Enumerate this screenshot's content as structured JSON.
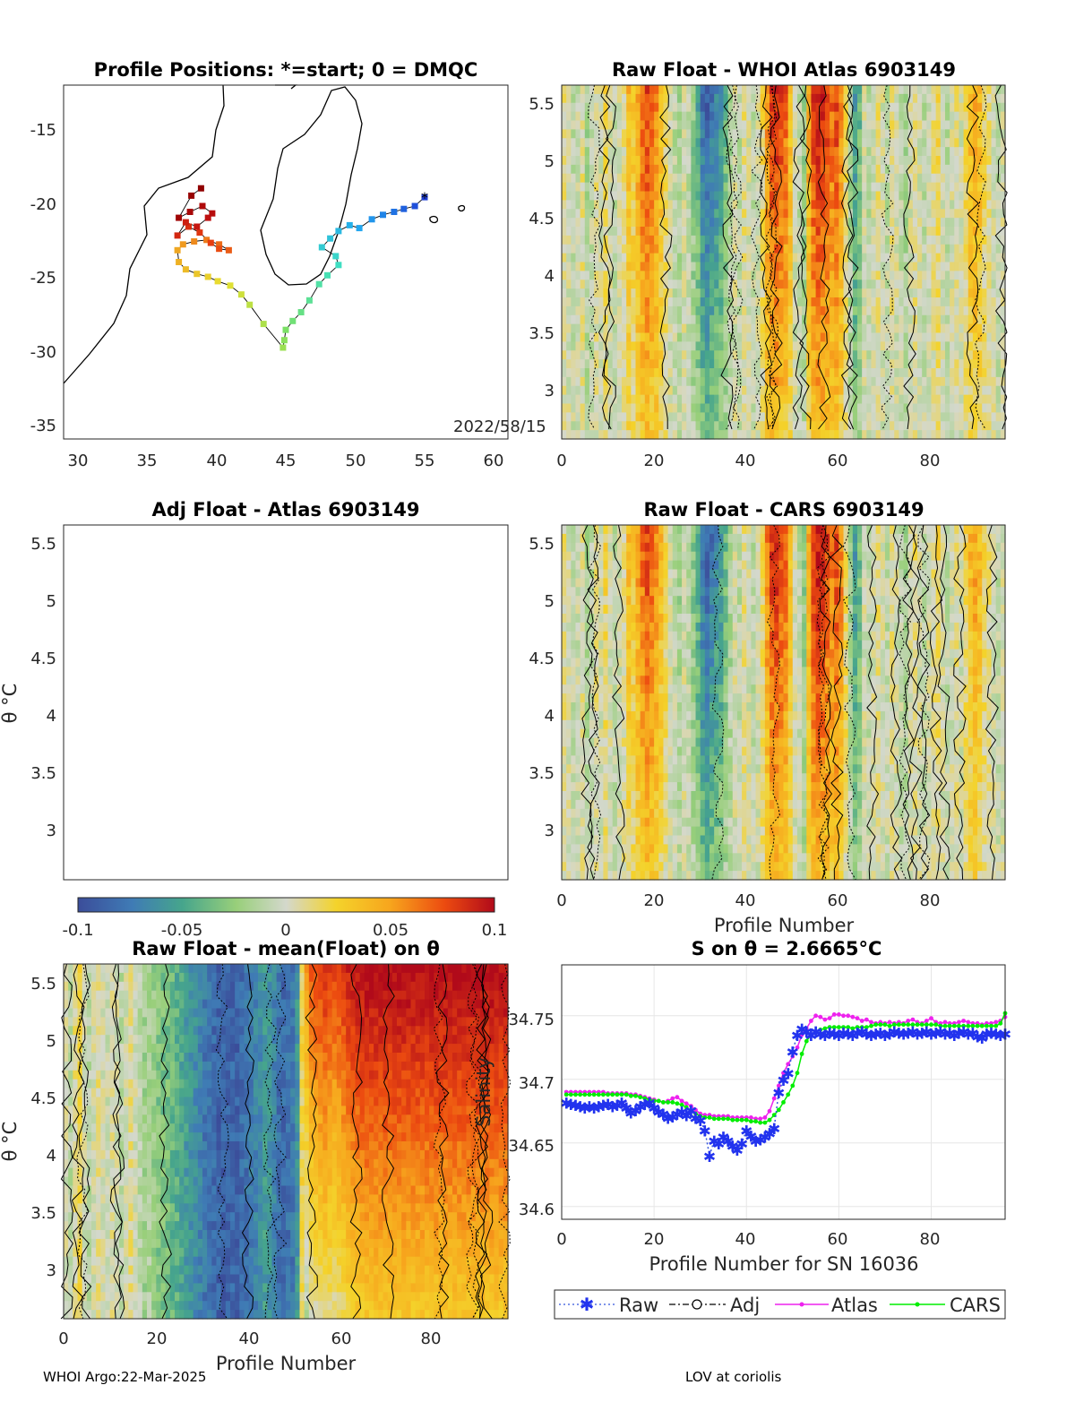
{
  "footer": {
    "left": "WHOI Argo:22-Mar-2025",
    "right": "LOV at coriolis"
  },
  "colorbar": {
    "ticks": [
      "-0.1",
      "-0.05",
      "0",
      "0.05",
      "0.1"
    ],
    "colors": [
      "#3b4d9a",
      "#3f7bb5",
      "#46a58c",
      "#98cf7a",
      "#d4d8cc",
      "#f4d32b",
      "#f7a51d",
      "#ec4b10",
      "#b10a1a"
    ]
  },
  "map": {
    "title": "Profile Positions: *=start; 0 = DMQC",
    "date_label": "2022/58/15",
    "xticks": [
      "30",
      "35",
      "40",
      "45",
      "50",
      "55",
      "60"
    ],
    "yticks": [
      "-15",
      "-20",
      "-25",
      "-30",
      "-35"
    ]
  },
  "panel_atlas": {
    "title": "Raw Float - WHOI Atlas  6903149",
    "yticks": [
      "5.5",
      "5",
      "4.5",
      "4",
      "3.5",
      "3"
    ],
    "xticks": [
      "0",
      "20",
      "40",
      "60",
      "80"
    ]
  },
  "panel_adj": {
    "title": "Adj Float - Atlas  6903149",
    "yticks": [
      "5.5",
      "5",
      "4.5",
      "4",
      "3.5",
      "3"
    ],
    "ylabel": "θ °C"
  },
  "panel_cars": {
    "title": "Raw Float - CARS  6903149",
    "yticks": [
      "5.5",
      "5",
      "4.5",
      "4",
      "3.5",
      "3"
    ],
    "xticks": [
      "0",
      "20",
      "40",
      "60",
      "80"
    ],
    "xlabel": "Profile Number"
  },
  "panel_mean": {
    "title": "Raw Float - mean(Float) on θ",
    "yticks": [
      "5.5",
      "5",
      "4.5",
      "4",
      "3.5",
      "3"
    ],
    "xticks": [
      "0",
      "20",
      "40",
      "60",
      "80"
    ],
    "xlabel": "Profile Number",
    "ylabel": "θ °C"
  },
  "panel_salinity": {
    "title": "S on θ = 2.6665°C",
    "yticks": [
      "34.75",
      "34.7",
      "34.65",
      "34.6"
    ],
    "xticks": [
      "0",
      "20",
      "40",
      "60",
      "80"
    ],
    "xlabel": "Profile Number for SN 16036",
    "ylabel": "Salinity",
    "legend": [
      "Raw",
      "Adj",
      "Atlas",
      "CARS"
    ]
  },
  "chart_data": [
    {
      "type": "scatter",
      "title": "Profile Positions: *=start; 0 = DMQC",
      "xlim": [
        29,
        61
      ],
      "ylim": [
        -36,
        -12
      ],
      "track": [
        [
          55.0,
          -19.6
        ],
        [
          54.3,
          -20.2
        ],
        [
          53.5,
          -20.4
        ],
        [
          52.8,
          -20.6
        ],
        [
          52.0,
          -20.8
        ],
        [
          51.2,
          -21.1
        ],
        [
          50.3,
          -21.7
        ],
        [
          49.6,
          -21.5
        ],
        [
          48.8,
          -21.9
        ],
        [
          48.2,
          -22.4
        ],
        [
          47.6,
          -23.0
        ],
        [
          48.6,
          -23.6
        ],
        [
          48.8,
          -24.2
        ],
        [
          48.0,
          -24.9
        ],
        [
          47.4,
          -25.5
        ],
        [
          46.7,
          -26.6
        ],
        [
          46.1,
          -27.4
        ],
        [
          45.5,
          -28.0
        ],
        [
          45.0,
          -28.6
        ],
        [
          44.9,
          -29.3
        ],
        [
          44.8,
          -29.8
        ],
        [
          43.4,
          -28.2
        ],
        [
          42.4,
          -26.9
        ],
        [
          41.8,
          -26.2
        ],
        [
          41.0,
          -25.6
        ],
        [
          40.1,
          -25.3
        ],
        [
          39.4,
          -25.0
        ],
        [
          38.6,
          -24.8
        ],
        [
          37.8,
          -24.5
        ],
        [
          37.3,
          -24.0
        ],
        [
          37.2,
          -23.2
        ],
        [
          37.6,
          -22.8
        ],
        [
          38.4,
          -22.6
        ],
        [
          39.3,
          -22.5
        ],
        [
          40.2,
          -22.8
        ],
        [
          40.9,
          -23.2
        ],
        [
          40.2,
          -23.1
        ],
        [
          39.6,
          -22.7
        ],
        [
          38.8,
          -22.0
        ],
        [
          38.0,
          -21.6
        ],
        [
          37.2,
          -22.2
        ],
        [
          37.8,
          -21.3
        ],
        [
          38.6,
          -21.6
        ],
        [
          39.4,
          -21.0
        ],
        [
          39.7,
          -20.7
        ],
        [
          39.0,
          -20.2
        ],
        [
          38.1,
          -20.6
        ],
        [
          37.3,
          -21.0
        ],
        [
          38.2,
          -19.5
        ],
        [
          38.9,
          -19.0
        ]
      ]
    },
    {
      "type": "line",
      "title": "S on θ = 2.6665°C",
      "xlabel": "Profile Number for SN 16036",
      "ylabel": "Salinity",
      "xlim": [
        0,
        96
      ],
      "ylim": [
        34.59,
        34.79
      ],
      "series": [
        {
          "name": "Raw",
          "x": [
            1,
            2,
            3,
            4,
            5,
            6,
            7,
            8,
            9,
            10,
            11,
            12,
            13,
            14,
            15,
            16,
            17,
            18,
            19,
            20,
            21,
            22,
            23,
            24,
            25,
            26,
            27,
            28,
            29,
            30,
            31,
            32,
            33,
            34,
            35,
            36,
            37,
            38,
            39,
            40,
            41,
            42,
            43,
            44,
            45,
            46,
            47,
            48,
            49,
            50,
            51,
            52,
            53,
            54,
            55,
            56,
            57,
            58,
            59,
            60,
            61,
            62,
            63,
            64,
            65,
            66,
            67,
            68,
            69,
            70,
            71,
            72,
            73,
            74,
            75,
            76,
            77,
            78,
            79,
            80,
            81,
            82,
            83,
            84,
            85,
            86,
            87,
            88,
            89,
            90,
            91,
            92,
            93,
            94,
            95,
            96
          ],
          "values": [
            34.682,
            34.681,
            34.68,
            34.679,
            34.678,
            34.679,
            34.678,
            34.679,
            34.68,
            34.681,
            34.679,
            34.68,
            34.682,
            34.678,
            34.674,
            34.676,
            34.679,
            34.681,
            34.682,
            34.678,
            34.675,
            34.673,
            34.67,
            34.671,
            34.673,
            34.675,
            34.672,
            34.676,
            34.67,
            34.668,
            34.66,
            34.64,
            34.652,
            34.65,
            34.655,
            34.652,
            34.648,
            34.645,
            34.65,
            34.66,
            34.656,
            34.652,
            34.653,
            34.655,
            34.658,
            34.662,
            34.69,
            34.7,
            34.705,
            34.722,
            34.735,
            34.74,
            34.738,
            34.735,
            34.738,
            34.736,
            34.735,
            34.737,
            34.736,
            34.735,
            34.737,
            34.736,
            34.735,
            34.737,
            34.738,
            34.736,
            34.735,
            34.736,
            34.737,
            34.735,
            34.736,
            34.738,
            34.737,
            34.736,
            34.737,
            34.738,
            34.736,
            34.737,
            34.738,
            34.736,
            34.737,
            34.738,
            34.736,
            34.737,
            34.735,
            34.737,
            34.738,
            34.736,
            34.737,
            34.734,
            34.733,
            34.736,
            34.737,
            34.736,
            34.735,
            34.736
          ]
        },
        {
          "name": "Atlas",
          "x": [
            1,
            2,
            3,
            4,
            5,
            6,
            7,
            8,
            9,
            10,
            11,
            12,
            13,
            14,
            15,
            16,
            17,
            18,
            19,
            20,
            21,
            22,
            23,
            24,
            25,
            26,
            27,
            28,
            29,
            30,
            31,
            32,
            33,
            34,
            35,
            36,
            37,
            38,
            39,
            40,
            41,
            42,
            43,
            44,
            45,
            46,
            47,
            48,
            49,
            50,
            51,
            52,
            53,
            54,
            55,
            56,
            57,
            58,
            59,
            60,
            61,
            62,
            63,
            64,
            65,
            66,
            67,
            68,
            69,
            70,
            71,
            72,
            73,
            74,
            75,
            76,
            77,
            78,
            79,
            80,
            81,
            82,
            83,
            84,
            85,
            86,
            87,
            88,
            89,
            90,
            91,
            92,
            93,
            94,
            95,
            96
          ],
          "values": [
            34.69,
            34.69,
            34.69,
            34.69,
            34.69,
            34.69,
            34.69,
            34.69,
            34.69,
            34.689,
            34.689,
            34.689,
            34.689,
            34.689,
            34.688,
            34.688,
            34.687,
            34.686,
            34.685,
            34.684,
            34.683,
            34.682,
            34.683,
            34.685,
            34.686,
            34.683,
            34.681,
            34.679,
            34.676,
            34.673,
            34.672,
            34.672,
            34.671,
            34.671,
            34.671,
            34.671,
            34.67,
            34.67,
            34.67,
            34.67,
            34.67,
            34.669,
            34.669,
            34.67,
            34.675,
            34.685,
            34.695,
            34.705,
            34.712,
            34.718,
            34.725,
            34.735,
            34.74,
            34.746,
            34.75,
            34.749,
            34.747,
            34.748,
            34.751,
            34.751,
            34.75,
            34.75,
            34.749,
            34.748,
            34.746,
            34.747,
            34.745,
            34.744,
            34.745,
            34.744,
            34.745,
            34.744,
            34.745,
            34.744,
            34.746,
            34.747,
            34.745,
            34.744,
            34.746,
            34.748,
            34.745,
            34.744,
            34.745,
            34.744,
            34.744,
            34.745,
            34.746,
            34.745,
            34.744,
            34.744,
            34.743,
            34.744,
            34.744,
            34.745,
            34.746,
            34.749
          ]
        },
        {
          "name": "CARS",
          "x": [
            1,
            2,
            3,
            4,
            5,
            6,
            7,
            8,
            9,
            10,
            11,
            12,
            13,
            14,
            15,
            16,
            17,
            18,
            19,
            20,
            21,
            22,
            23,
            24,
            25,
            26,
            27,
            28,
            29,
            30,
            31,
            32,
            33,
            34,
            35,
            36,
            37,
            38,
            39,
            40,
            41,
            42,
            43,
            44,
            45,
            46,
            47,
            48,
            49,
            50,
            51,
            52,
            53,
            54,
            55,
            56,
            57,
            58,
            59,
            60,
            61,
            62,
            63,
            64,
            65,
            66,
            67,
            68,
            69,
            70,
            71,
            72,
            73,
            74,
            75,
            76,
            77,
            78,
            79,
            80,
            81,
            82,
            83,
            84,
            85,
            86,
            87,
            88,
            89,
            90,
            91,
            92,
            93,
            94,
            95,
            96
          ],
          "values": [
            34.688,
            34.688,
            34.688,
            34.688,
            34.688,
            34.688,
            34.688,
            34.688,
            34.688,
            34.688,
            34.688,
            34.688,
            34.688,
            34.688,
            34.687,
            34.687,
            34.686,
            34.685,
            34.684,
            34.683,
            34.683,
            34.682,
            34.682,
            34.682,
            34.681,
            34.68,
            34.678,
            34.675,
            34.673,
            34.671,
            34.67,
            34.67,
            34.669,
            34.669,
            34.669,
            34.669,
            34.668,
            34.668,
            34.668,
            34.668,
            34.667,
            34.667,
            34.666,
            34.666,
            34.668,
            34.672,
            34.676,
            34.682,
            34.688,
            34.695,
            34.705,
            34.72,
            34.73,
            34.735,
            34.737,
            34.739,
            34.74,
            34.741,
            34.741,
            34.741,
            34.741,
            34.741,
            34.74,
            34.741,
            34.741,
            34.741,
            34.742,
            34.743,
            34.743,
            34.743,
            34.742,
            34.743,
            34.743,
            34.743,
            34.743,
            34.743,
            34.743,
            34.743,
            34.743,
            34.743,
            34.743,
            34.742,
            34.742,
            34.742,
            34.742,
            34.742,
            34.742,
            34.742,
            34.742,
            34.742,
            34.742,
            34.742,
            34.742,
            34.742,
            34.744,
            34.752
          ]
        }
      ]
    }
  ]
}
